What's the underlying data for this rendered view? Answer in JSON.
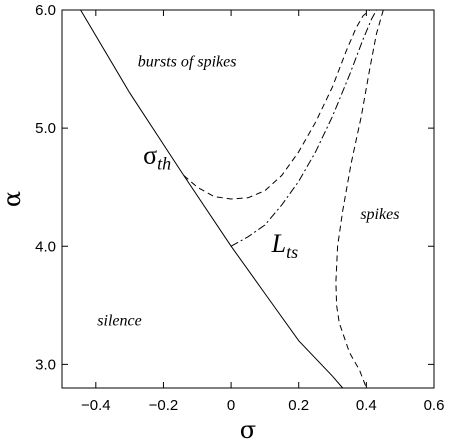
{
  "chart_data": {
    "type": "line",
    "title": "",
    "xlabel": "σ",
    "ylabel": "α",
    "xlim": [
      -0.5,
      0.6
    ],
    "ylim": [
      2.8,
      6.0
    ],
    "x_ticks": [
      -0.4,
      -0.2,
      0.0,
      0.2,
      0.4,
      0.6
    ],
    "x_tick_labels": [
      "−0.4",
      "−0.2",
      "0",
      "0.2",
      "0.4",
      "0.6"
    ],
    "y_ticks": [
      3.0,
      4.0,
      5.0,
      6.0
    ],
    "y_tick_labels": [
      "3.0",
      "4.0",
      "5.0",
      "6.0"
    ],
    "grid": false,
    "series": [
      {
        "style": "solid",
        "x": [
          -0.445,
          -0.3,
          -0.14,
          0.0,
          0.1,
          0.2,
          0.3,
          0.33
        ],
        "y": [
          6.0,
          5.3,
          4.6,
          4.0,
          3.6,
          3.2,
          2.9,
          2.8
        ]
      },
      {
        "style": "dashed",
        "x": [
          -0.14,
          -0.1,
          -0.05,
          0.0,
          0.05,
          0.1,
          0.15,
          0.2,
          0.25,
          0.3,
          0.34,
          0.37,
          0.39,
          0.41
        ],
        "y": [
          4.6,
          4.5,
          4.42,
          4.4,
          4.41,
          4.47,
          4.6,
          4.8,
          5.05,
          5.35,
          5.65,
          5.85,
          5.95,
          6.0
        ]
      },
      {
        "style": "dash-dot",
        "x": [
          0.0,
          0.05,
          0.1,
          0.15,
          0.2,
          0.25,
          0.3,
          0.35,
          0.39,
          0.415,
          0.43
        ],
        "y": [
          4.0,
          4.08,
          4.18,
          4.35,
          4.55,
          4.8,
          5.1,
          5.45,
          5.75,
          5.92,
          6.0
        ]
      },
      {
        "style": "dashed",
        "x": [
          0.45,
          0.43,
          0.41,
          0.385,
          0.355,
          0.33,
          0.315,
          0.31,
          0.312,
          0.32,
          0.35,
          0.38,
          0.4
        ],
        "y": [
          6.0,
          5.8,
          5.5,
          5.1,
          4.7,
          4.3,
          4.0,
          3.7,
          3.5,
          3.35,
          3.1,
          2.95,
          2.8
        ]
      }
    ],
    "annotations": [
      {
        "text": "bursts of spikes",
        "x": -0.13,
        "y": 5.52
      },
      {
        "text": "spikes",
        "x": 0.44,
        "y": 4.23
      },
      {
        "text": "silence",
        "x": -0.33,
        "y": 3.33
      },
      {
        "main": "σ",
        "sub": "th",
        "x": -0.26,
        "y": 4.7
      },
      {
        "main": "L",
        "sub": "ts",
        "x": 0.12,
        "y": 3.95
      }
    ]
  }
}
